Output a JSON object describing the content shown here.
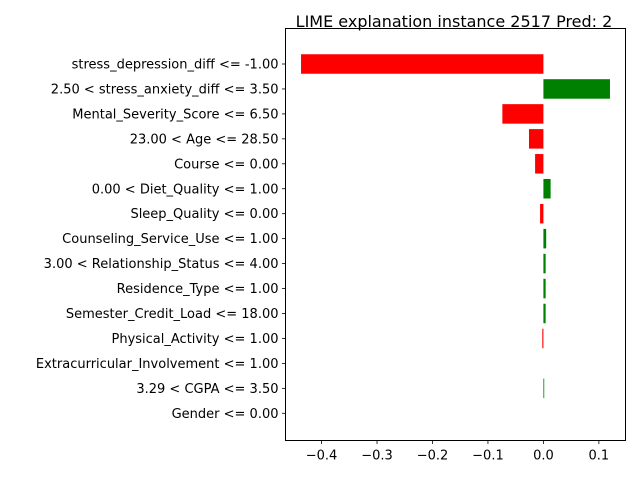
{
  "chart_data": {
    "type": "bar",
    "orientation": "horizontal",
    "title": "LIME explanation instance 2517 Pred: 2",
    "xlabel": "",
    "ylabel": "",
    "xlim": [
      -0.465,
      0.148
    ],
    "xticks": [
      -0.4,
      -0.3,
      -0.2,
      -0.1,
      0.0,
      0.1
    ],
    "xtick_labels": [
      "−0.4",
      "−0.3",
      "−0.2",
      "−0.1",
      "0.0",
      "0.1"
    ],
    "grid": false,
    "positive_color": "#008000",
    "negative_color": "#ff0000",
    "categories": [
      "stress_depression_diff <= -1.00",
      "2.50 < stress_anxiety_diff <= 3.50",
      "Mental_Severity_Score <= 6.50",
      "23.00 < Age <= 28.50",
      "Course <= 0.00",
      "0.00 < Diet_Quality <= 1.00",
      "Sleep_Quality <= 0.00",
      "Counseling_Service_Use <= 1.00",
      "3.00 < Relationship_Status <= 4.00",
      "Residence_Type <= 1.00",
      "Semester_Credit_Load <= 18.00",
      "Physical_Activity <= 1.00",
      "Extracurricular_Involvement <= 1.00",
      "3.29 < CGPA <= 3.50",
      "Gender <= 0.00"
    ],
    "values": [
      -0.437,
      0.12,
      -0.074,
      -0.026,
      -0.015,
      0.013,
      -0.006,
      0.005,
      0.004,
      0.004,
      0.004,
      -0.002,
      0.0,
      0.001,
      0.0
    ]
  }
}
